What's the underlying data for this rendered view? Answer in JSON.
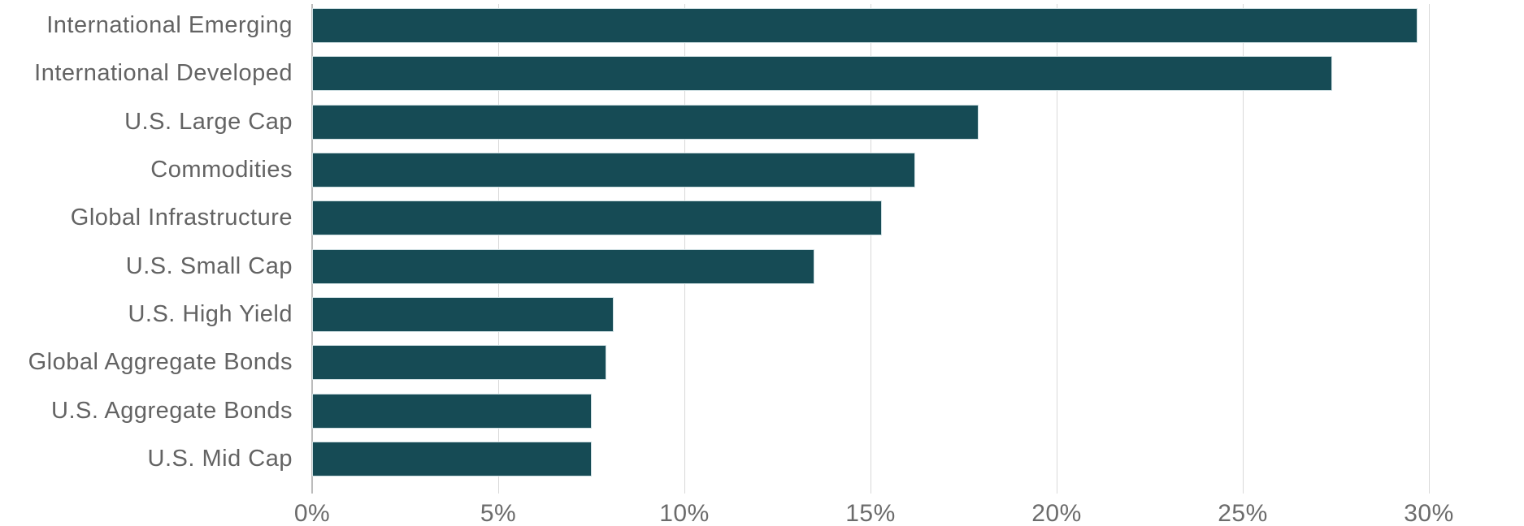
{
  "chart_data": {
    "type": "bar",
    "orientation": "horizontal",
    "title": "",
    "xlabel": "",
    "ylabel": "",
    "categories": [
      "International Emerging",
      "International Developed",
      "U.S. Large Cap",
      "Commodities",
      "Global Infrastructure",
      "U.S. Small Cap",
      "U.S. High Yield",
      "Global Aggregate Bonds",
      "U.S. Aggregate Bonds",
      "U.S. Mid Cap"
    ],
    "values": [
      29.7,
      27.4,
      17.9,
      16.2,
      15.3,
      13.5,
      8.1,
      7.9,
      7.5,
      7.5
    ],
    "value_unit": "%",
    "xlim": [
      0,
      30
    ],
    "x_ticks": [
      {
        "value": 0,
        "label": "0%"
      },
      {
        "value": 5,
        "label": "5%"
      },
      {
        "value": 10,
        "label": "10%"
      },
      {
        "value": 15,
        "label": "15%"
      },
      {
        "value": 20,
        "label": "20%"
      },
      {
        "value": 25,
        "label": "25%"
      },
      {
        "value": 30,
        "label": "30%"
      }
    ],
    "grid": "vertical-gridlines-on",
    "legend": "none",
    "colors": {
      "bar_fill": "#164b55",
      "bar_border": "#cfdfe2",
      "gridline": "#d9d9d9",
      "axis_line": "#bcbcbc",
      "category_text": "#636363",
      "tick_text": "#6b6b6b",
      "background": "#ffffff"
    }
  }
}
